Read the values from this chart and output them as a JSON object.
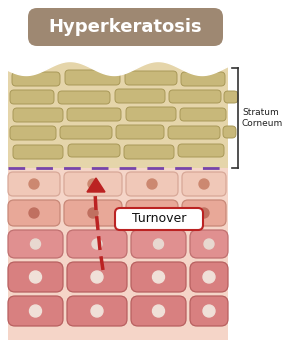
{
  "title": "Hyperkeratosis",
  "title_bg": "#9e8872",
  "title_color": "#ffffff",
  "stratum_corneum_label": "Stratum\nCorneum",
  "turnover_label": "Turnover",
  "bg_color": "#ffffff",
  "skin_bg_top": "#e5d5aa",
  "corneum_cell_color": "#c8b87a",
  "corneum_cell_edge": "#a89858",
  "upper_cell_color": "#f0c8b8",
  "upper_cell_edge": "#d8a898",
  "upper_nucleus": "#cc8870",
  "mid_cell_color": "#e8a898",
  "mid_cell_edge": "#c88878",
  "mid_nucleus": "#c07060",
  "deep_cell_color": "#e09090",
  "deep_cell_edge": "#c07070",
  "deep_nucleus": "#e8d8d0",
  "bot_cell_color": "#d88080",
  "bot_cell_edge": "#b86060",
  "bot_nucleus": "#f0e0d8",
  "dashed_line_color": "#7744aa",
  "arrow_color": "#bb2222",
  "turnover_box_color": "#ffffff",
  "turnover_box_edge": "#bb2222",
  "turnover_text_color": "#111111",
  "bracket_color": "#333333"
}
